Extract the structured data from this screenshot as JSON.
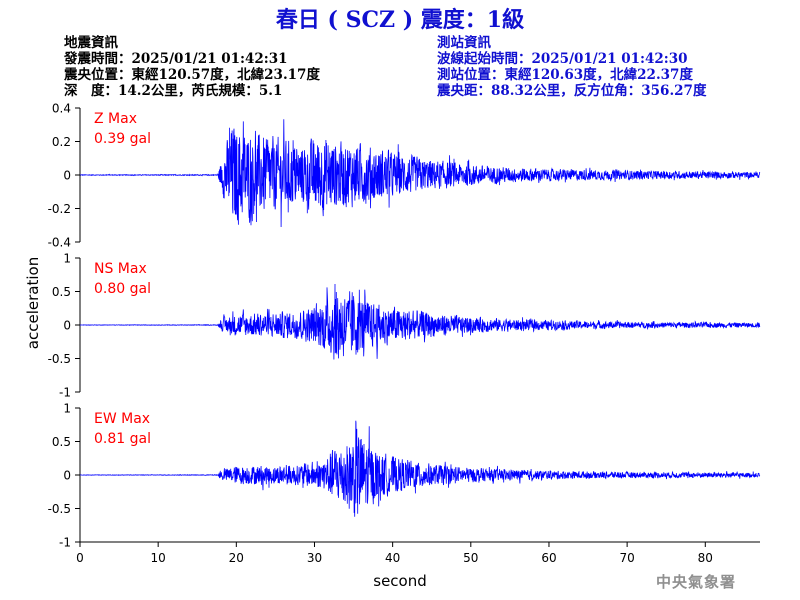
{
  "header": {
    "title": "春日 ( SCZ ) 震度：1級"
  },
  "quake_info": {
    "heading": "地震資訊",
    "origin_time": "發震時間：2025/01/21 01:42:31",
    "epicenter": "震央位置：東經120.57度，北緯23.17度",
    "depth_magnitude": "深　度：14.2公里，芮氏規模：5.1"
  },
  "station_info": {
    "heading": "測站資訊",
    "wave_start": "波線起始時間：2025/01/21 01:42:30",
    "station_location": "測站位置：東經120.63度，北緯22.37度",
    "distance_azimuth": "震央距：88.32公里，反方位角：356.27度"
  },
  "footer": {
    "agency": "中央氣象署"
  },
  "chart_data": {
    "type": "line",
    "xlabel": "second",
    "ylabel": "acceleration",
    "xlim": [
      0,
      87
    ],
    "x_ticks": [
      "0",
      "10",
      "20",
      "30",
      "40",
      "50",
      "60",
      "70",
      "80"
    ],
    "colors": {
      "trace": "#0000ff",
      "max_label": "#ff0000",
      "axis": "#000000"
    },
    "channels": [
      {
        "name": "Z",
        "max_label": "Z Max",
        "max_value": "0.39 gal",
        "max_abs": 0.39,
        "ylim": [
          -0.4,
          0.4
        ],
        "y_ticks": [
          "0.4",
          "0.2",
          "0",
          "-0.2",
          "-0.4"
        ],
        "onset": 17.7,
        "envelope": [
          [
            0,
            0.002
          ],
          [
            17.6,
            0.003
          ],
          [
            18.2,
            0.12
          ],
          [
            19.5,
            0.35
          ],
          [
            21,
            0.3
          ],
          [
            23,
            0.26
          ],
          [
            26,
            0.24
          ],
          [
            28,
            0.2
          ],
          [
            31,
            0.26
          ],
          [
            33,
            0.22
          ],
          [
            36,
            0.2
          ],
          [
            40,
            0.15
          ],
          [
            45,
            0.1
          ],
          [
            50,
            0.07
          ],
          [
            55,
            0.05
          ],
          [
            60,
            0.04
          ],
          [
            70,
            0.03
          ],
          [
            87,
            0.02
          ]
        ]
      },
      {
        "name": "NS",
        "max_label": "NS Max",
        "max_value": "0.80 gal",
        "max_abs": 0.8,
        "ylim": [
          -1,
          1
        ],
        "y_ticks": [
          "1",
          "0.5",
          "0",
          "-0.5",
          "-1"
        ],
        "onset": 17.7,
        "envelope": [
          [
            0,
            0.003
          ],
          [
            17.6,
            0.005
          ],
          [
            18.3,
            0.12
          ],
          [
            20,
            0.18
          ],
          [
            23,
            0.2
          ],
          [
            27,
            0.22
          ],
          [
            30,
            0.3
          ],
          [
            32,
            0.5
          ],
          [
            33,
            0.7
          ],
          [
            34,
            0.5
          ],
          [
            35,
            0.6
          ],
          [
            36,
            0.45
          ],
          [
            38,
            0.35
          ],
          [
            40,
            0.3
          ],
          [
            45,
            0.2
          ],
          [
            50,
            0.13
          ],
          [
            55,
            0.1
          ],
          [
            60,
            0.08
          ],
          [
            70,
            0.05
          ],
          [
            87,
            0.04
          ]
        ]
      },
      {
        "name": "EW",
        "max_label": "EW Max",
        "max_value": "0.81 gal",
        "max_abs": 0.81,
        "ylim": [
          -1,
          1
        ],
        "y_ticks": [
          "1",
          "0.5",
          "0",
          "-0.5",
          "-1"
        ],
        "onset": 17.7,
        "envelope": [
          [
            0,
            0.003
          ],
          [
            17.6,
            0.005
          ],
          [
            18.3,
            0.1
          ],
          [
            20,
            0.15
          ],
          [
            24,
            0.16
          ],
          [
            28,
            0.17
          ],
          [
            31,
            0.25
          ],
          [
            32.5,
            0.45
          ],
          [
            34,
            0.55
          ],
          [
            35.5,
            0.8
          ],
          [
            36.5,
            0.6
          ],
          [
            38,
            0.4
          ],
          [
            40,
            0.3
          ],
          [
            45,
            0.18
          ],
          [
            50,
            0.12
          ],
          [
            55,
            0.09
          ],
          [
            60,
            0.07
          ],
          [
            70,
            0.05
          ],
          [
            87,
            0.04
          ]
        ]
      }
    ]
  }
}
